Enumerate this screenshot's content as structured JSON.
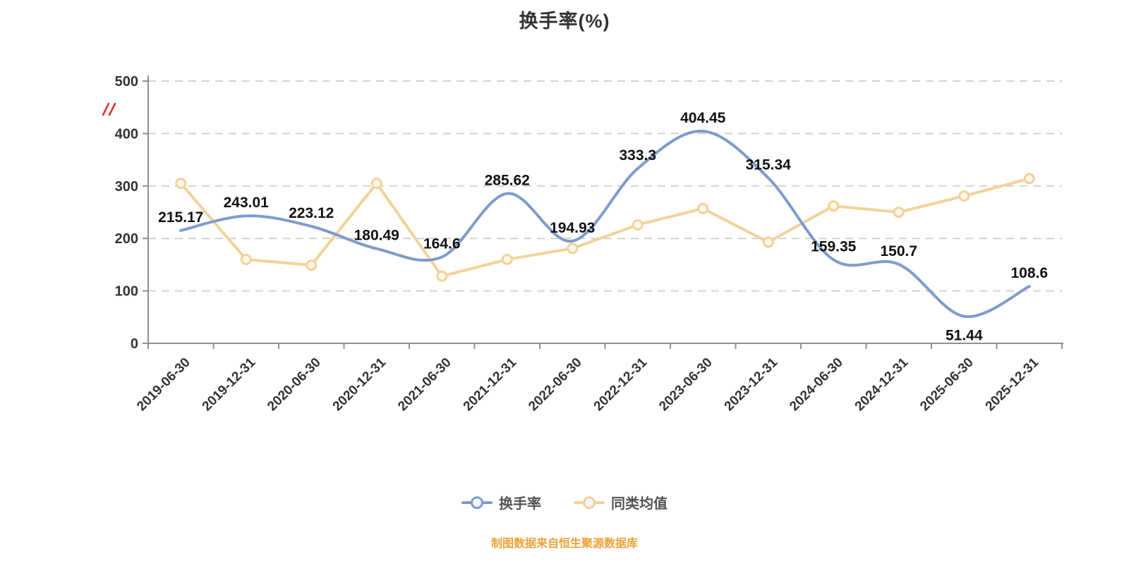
{
  "chart": {
    "title": "换手率(%)",
    "footer": "制图数据来自恒生聚源数据库"
  },
  "colors": {
    "series_blue": "#7d9ccb",
    "series_yellow": "#f2d299",
    "grid": "#d2d2d2",
    "axis": "#909090",
    "tick_label": "#333333",
    "data_label": "#111111",
    "footer": "#eea236",
    "event_marker_red": "#e03131"
  },
  "icons": {
    "event_marker_icon": "red-event-marker",
    "legend_marker_icon": "line-through-circle"
  },
  "legend": {
    "items": [
      {
        "label": "换手率",
        "color": "#7d9ccb"
      },
      {
        "label": "同类均值",
        "color": "#f2d299"
      }
    ]
  },
  "chart_data": {
    "type": "line",
    "title": "换手率(%)",
    "categories": [
      "2019-06-30",
      "2019-12-31",
      "2020-06-30",
      "2020-12-31",
      "2021-06-30",
      "2021-12-31",
      "2022-06-30",
      "2022-12-31",
      "2023-06-30",
      "2023-12-31",
      "2024-06-30",
      "2024-12-31",
      "2025-06-30",
      "2025-12-31"
    ],
    "series": [
      {
        "name": "换手率",
        "color": "#7d9ccb",
        "smooth": true,
        "markers": false,
        "labels": true,
        "values": [
          215.17,
          243.01,
          223.12,
          180.49,
          164.6,
          285.62,
          194.93,
          333.3,
          404.45,
          315.34,
          159.35,
          150.7,
          51.44,
          108.6
        ]
      },
      {
        "name": "同类均值",
        "color": "#f2d299",
        "smooth": false,
        "markers": true,
        "labels": false,
        "values": [
          305,
          160,
          149,
          305,
          128,
          160,
          181,
          226,
          257,
          193,
          262,
          250,
          281,
          314
        ]
      }
    ],
    "ylim": [
      0,
      500
    ],
    "yticks": [
      0,
      100,
      200,
      300,
      400,
      500
    ],
    "grid": "dashed-horizontal",
    "legend_position": "bottom",
    "xlabel": "",
    "ylabel": ""
  }
}
